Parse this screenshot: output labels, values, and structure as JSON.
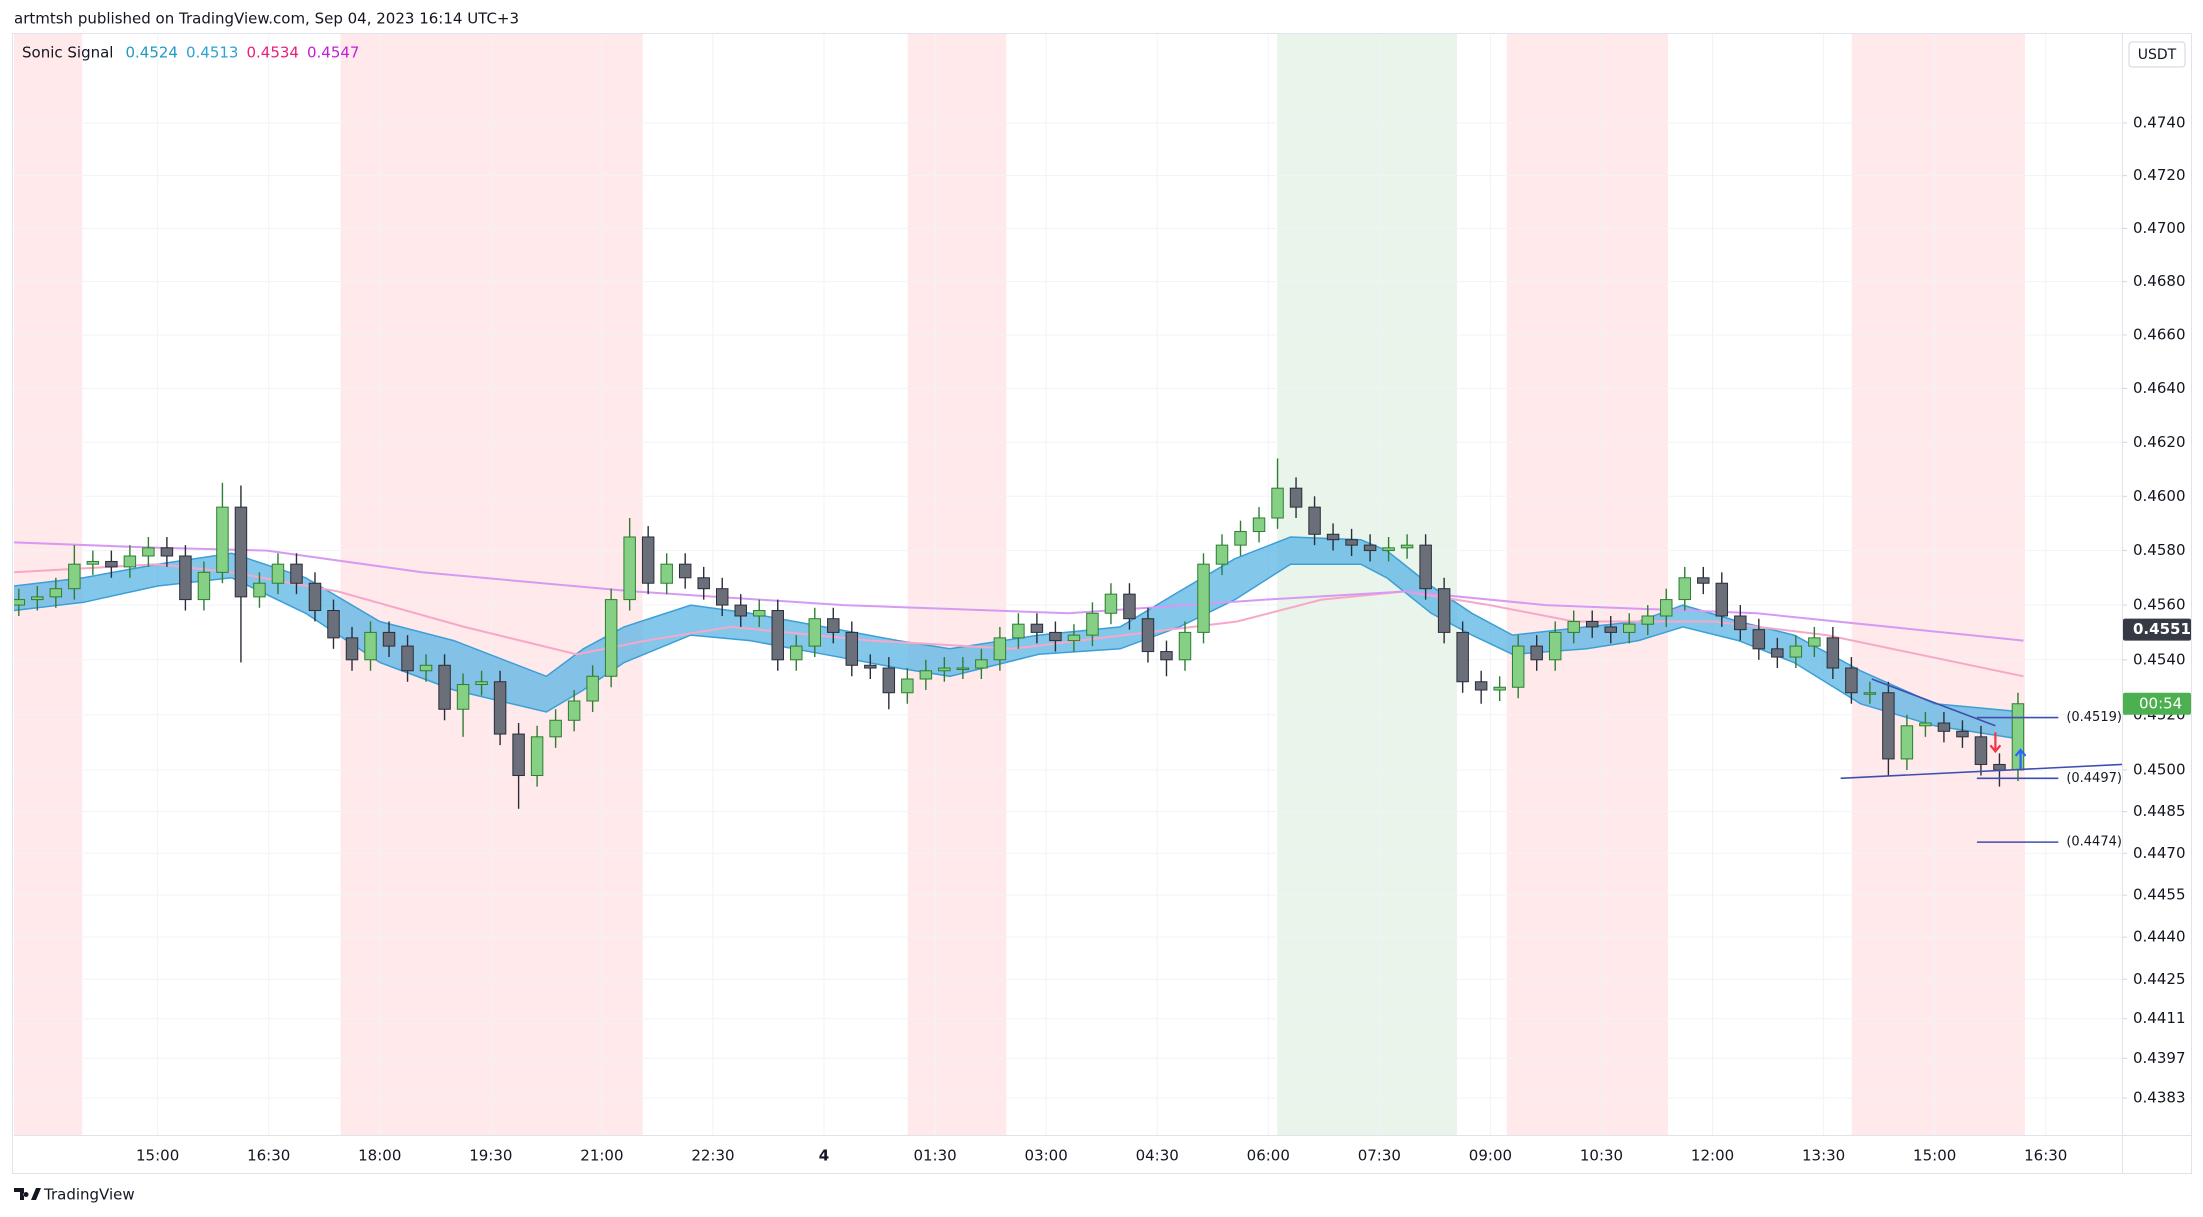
{
  "header": {
    "text": "artmtsh published on TradingView.com, Sep 04, 2023 16:14 UTC+3"
  },
  "footer": {
    "brand": "TradingView"
  },
  "chart_data": {
    "type": "candlestick",
    "currency": "USDT",
    "log": true,
    "grid": true,
    "xlim": [
      13.06,
      41.53
    ],
    "ylim": [
      0.437,
      0.4774
    ],
    "xticks": [
      {
        "value": 15,
        "label": "15:00"
      },
      {
        "value": 16.5,
        "label": "16:30"
      },
      {
        "value": 18,
        "label": "18:00"
      },
      {
        "value": 19.5,
        "label": "19:30"
      },
      {
        "value": 21,
        "label": "21:00"
      },
      {
        "value": 22.5,
        "label": "22:30"
      },
      {
        "value": 24,
        "label": "4"
      },
      {
        "value": 25.5,
        "label": "01:30"
      },
      {
        "value": 27,
        "label": "03:00"
      },
      {
        "value": 28.5,
        "label": "04:30"
      },
      {
        "value": 30,
        "label": "06:00"
      },
      {
        "value": 31.5,
        "label": "07:30"
      },
      {
        "value": 33,
        "label": "09:00"
      },
      {
        "value": 34.5,
        "label": "10:30"
      },
      {
        "value": 36,
        "label": "12:00"
      },
      {
        "value": 37.5,
        "label": "13:30"
      },
      {
        "value": 39,
        "label": "15:00"
      },
      {
        "value": 40.5,
        "label": "16:30"
      }
    ],
    "yticks": [
      {
        "value": 0.474,
        "label": "0.4740"
      },
      {
        "value": 0.472,
        "label": "0.4720"
      },
      {
        "value": 0.47,
        "label": "0.4700"
      },
      {
        "value": 0.468,
        "label": "0.4680"
      },
      {
        "value": 0.466,
        "label": "0.4660"
      },
      {
        "value": 0.464,
        "label": "0.4640"
      },
      {
        "value": 0.462,
        "label": "0.4620"
      },
      {
        "value": 0.46,
        "label": "0.4600"
      },
      {
        "value": 0.458,
        "label": "0.4580"
      },
      {
        "value": 0.456,
        "label": "0.4560"
      },
      {
        "value": 0.454,
        "label": "0.4540"
      },
      {
        "value": 0.452,
        "label": "0.4520"
      },
      {
        "value": 0.45,
        "label": "0.4500"
      },
      0.4485,
      {
        "value": 0.447,
        "label": "0.4470"
      },
      0.4455,
      {
        "value": 0.444,
        "label": "0.4440"
      },
      0.4425,
      0.4411,
      0.4397,
      0.4383
    ],
    "zones": [
      {
        "start": 13.06,
        "end": 13.98,
        "color": "#ffe9ea"
      },
      {
        "start": 17.47,
        "end": 21.55,
        "color": "#ffe9ea"
      },
      {
        "start": 25.13,
        "end": 26.46,
        "color": "#ffe9ea"
      },
      {
        "start": 30.12,
        "end": 32.55,
        "color": "#e9f4ea"
      },
      {
        "start": 33.22,
        "end": 35.4,
        "color": "#ffe9ea"
      },
      {
        "start": 37.88,
        "end": 40.22,
        "color": "#ffe9ea"
      }
    ],
    "legend": {
      "title": "Sonic Signal"
    },
    "up_color": "#86d086",
    "up_border": "#2e7d32",
    "down_color": "#6b6f7a",
    "down_border": "#2a2e39",
    "x": [
      13.125,
      13.375,
      13.625,
      13.875,
      14.125,
      14.375,
      14.625,
      14.875,
      15.125,
      15.375,
      15.625,
      15.875,
      16.125,
      16.375,
      16.625,
      16.875,
      17.125,
      17.375,
      17.625,
      17.875,
      18.125,
      18.375,
      18.625,
      18.875,
      19.125,
      19.375,
      19.625,
      19.875,
      20.125,
      20.375,
      20.625,
      20.875,
      21.125,
      21.375,
      21.625,
      21.875,
      22.125,
      22.375,
      22.625,
      22.875,
      23.125,
      23.375,
      23.625,
      23.875,
      24.125,
      24.375,
      24.625,
      24.875,
      25.125,
      25.375,
      25.625,
      25.875,
      26.125,
      26.375,
      26.625,
      26.875,
      27.125,
      27.375,
      27.625,
      27.875,
      28.125,
      28.375,
      28.625,
      28.875,
      29.125,
      29.375,
      29.625,
      29.875,
      30.125,
      30.375,
      30.625,
      30.875,
      31.125,
      31.375,
      31.625,
      31.875,
      32.125,
      32.375,
      32.625,
      32.875,
      33.125,
      33.375,
      33.625,
      33.875,
      34.125,
      34.375,
      34.625,
      34.875,
      35.125,
      35.375,
      35.625,
      35.875,
      36.125,
      36.375,
      36.625,
      36.875,
      37.125,
      37.375,
      37.625,
      37.875,
      38.125,
      38.375,
      38.625,
      38.875,
      39.125,
      39.375,
      39.625,
      39.875,
      40.125
    ],
    "open": [
      0.456,
      0.4562,
      0.4563,
      0.4566,
      0.4575,
      0.4576,
      0.4574,
      0.4578,
      0.4581,
      0.4578,
      0.4562,
      0.4572,
      0.4596,
      0.4563,
      0.4568,
      0.4575,
      0.4568,
      0.4558,
      0.4548,
      0.454,
      0.455,
      0.4545,
      0.4536,
      0.4538,
      0.4522,
      0.4531,
      0.4532,
      0.4513,
      0.4498,
      0.4512,
      0.4518,
      0.4525,
      0.4534,
      0.4562,
      0.4585,
      0.4568,
      0.4575,
      0.457,
      0.4566,
      0.456,
      0.4556,
      0.4558,
      0.454,
      0.4545,
      0.4555,
      0.455,
      0.4538,
      0.4537,
      0.4528,
      0.4533,
      0.4536,
      0.4537,
      0.4537,
      0.454,
      0.4548,
      0.4553,
      0.455,
      0.4547,
      0.4549,
      0.4557,
      0.4564,
      0.4555,
      0.4543,
      0.454,
      0.455,
      0.4575,
      0.4582,
      0.4587,
      0.4592,
      0.4603,
      0.4596,
      0.4586,
      0.4584,
      0.4582,
      0.458,
      0.4581,
      0.4582,
      0.4566,
      0.455,
      0.4532,
      0.4529,
      0.453,
      0.4545,
      0.454,
      0.455,
      0.4554,
      0.4552,
      0.455,
      0.4553,
      0.4556,
      0.4562,
      0.457,
      0.4568,
      0.4556,
      0.4551,
      0.4544,
      0.4541,
      0.4545,
      0.4548,
      0.4537,
      0.4528,
      0.4528,
      0.4504,
      0.4516,
      0.4517,
      0.4514,
      0.4512,
      0.4502,
      0.45
    ],
    "high": [
      0.4566,
      0.4567,
      0.457,
      0.4582,
      0.458,
      0.458,
      0.4582,
      0.4585,
      0.4585,
      0.4582,
      0.4576,
      0.4605,
      0.4604,
      0.4572,
      0.4579,
      0.4579,
      0.4572,
      0.4562,
      0.4552,
      0.4554,
      0.4554,
      0.4549,
      0.4542,
      0.4542,
      0.4535,
      0.4536,
      0.4536,
      0.4517,
      0.4516,
      0.4522,
      0.4529,
      0.4538,
      0.4566,
      0.4592,
      0.4589,
      0.4579,
      0.4579,
      0.4574,
      0.457,
      0.4564,
      0.4562,
      0.4562,
      0.4549,
      0.4559,
      0.4559,
      0.4554,
      0.4542,
      0.4541,
      0.4537,
      0.454,
      0.4541,
      0.4541,
      0.4544,
      0.4552,
      0.4557,
      0.4557,
      0.4554,
      0.4553,
      0.4561,
      0.4568,
      0.4568,
      0.4559,
      0.4547,
      0.4554,
      0.4579,
      0.4586,
      0.4591,
      0.4596,
      0.4614,
      0.4607,
      0.46,
      0.459,
      0.4588,
      0.4586,
      0.4585,
      0.4586,
      0.4586,
      0.457,
      0.4554,
      0.4536,
      0.4534,
      0.4549,
      0.4549,
      0.4554,
      0.4558,
      0.4558,
      0.4556,
      0.4557,
      0.456,
      0.4566,
      0.4574,
      0.4574,
      0.4572,
      0.456,
      0.4555,
      0.4548,
      0.4549,
      0.4552,
      0.4552,
      0.4541,
      0.4532,
      0.4532,
      0.452,
      0.4521,
      0.4521,
      0.4518,
      0.4516,
      0.4506,
      0.4528
    ],
    "low": [
      0.4556,
      0.4558,
      0.4559,
      0.4562,
      0.4571,
      0.457,
      0.457,
      0.4574,
      0.4574,
      0.4558,
      0.4558,
      0.4568,
      0.4539,
      0.4559,
      0.4564,
      0.4564,
      0.4554,
      0.4544,
      0.4536,
      0.4536,
      0.4541,
      0.4532,
      0.4532,
      0.4518,
      0.4512,
      0.4527,
      0.4509,
      0.4486,
      0.4494,
      0.4508,
      0.4514,
      0.4521,
      0.453,
      0.4558,
      0.4564,
      0.4564,
      0.4566,
      0.4562,
      0.4556,
      0.4552,
      0.4552,
      0.4536,
      0.4536,
      0.4541,
      0.4546,
      0.4534,
      0.4533,
      0.4522,
      0.4524,
      0.4529,
      0.4532,
      0.4533,
      0.4533,
      0.4536,
      0.4544,
      0.4546,
      0.4543,
      0.4543,
      0.4545,
      0.4553,
      0.4551,
      0.4539,
      0.4534,
      0.4536,
      0.4546,
      0.4571,
      0.4578,
      0.4583,
      0.4588,
      0.4592,
      0.4582,
      0.458,
      0.4578,
      0.4576,
      0.4576,
      0.4577,
      0.4562,
      0.4546,
      0.4528,
      0.4524,
      0.4525,
      0.4526,
      0.4536,
      0.4536,
      0.4546,
      0.4548,
      0.4546,
      0.4546,
      0.4549,
      0.4552,
      0.4558,
      0.4564,
      0.4552,
      0.4547,
      0.454,
      0.4537,
      0.4537,
      0.4541,
      0.4533,
      0.4524,
      0.4524,
      0.4498,
      0.45,
      0.4512,
      0.451,
      0.4508,
      0.4498,
      0.4494,
      0.4496
    ],
    "close": [
      0.4562,
      0.4563,
      0.4566,
      0.4575,
      0.4576,
      0.4574,
      0.4578,
      0.4581,
      0.4578,
      0.4562,
      0.4572,
      0.4596,
      0.4563,
      0.4568,
      0.4575,
      0.4568,
      0.4558,
      0.4548,
      0.454,
      0.455,
      0.4545,
      0.4536,
      0.4538,
      0.4522,
      0.4531,
      0.4532,
      0.4513,
      0.4498,
      0.4512,
      0.4518,
      0.4525,
      0.4534,
      0.4562,
      0.4585,
      0.4568,
      0.4575,
      0.457,
      0.4566,
      0.456,
      0.4556,
      0.4558,
      0.454,
      0.4545,
      0.4555,
      0.455,
      0.4538,
      0.4537,
      0.4528,
      0.4533,
      0.4536,
      0.4537,
      0.4537,
      0.454,
      0.4548,
      0.4553,
      0.455,
      0.4547,
      0.4549,
      0.4557,
      0.4564,
      0.4555,
      0.4543,
      0.454,
      0.455,
      0.4575,
      0.4582,
      0.4587,
      0.4592,
      0.4603,
      0.4596,
      0.4586,
      0.4584,
      0.4582,
      0.458,
      0.4581,
      0.4582,
      0.4566,
      0.455,
      0.4532,
      0.4529,
      0.453,
      0.4545,
      0.454,
      0.455,
      0.4554,
      0.4552,
      0.455,
      0.4553,
      0.4556,
      0.4562,
      0.457,
      0.4568,
      0.4556,
      0.4551,
      0.4544,
      0.4541,
      0.4545,
      0.4548,
      0.4537,
      0.4528,
      0.4528,
      0.4504,
      0.4516,
      0.4517,
      0.4514,
      0.4512,
      0.4502,
      0.45,
      0.4524
    ],
    "ribbon": {
      "fill": "#5ab4e4",
      "stroke": "#3c9fd6",
      "upper": {
        "legend_value": 0.4524,
        "legend_color": "#1f9bc4",
        "x": [
          13.06,
          14,
          15,
          16,
          17,
          18,
          19,
          20.25,
          20.75,
          21.3,
          22.2,
          23,
          24,
          25,
          25.7,
          26.9,
          28,
          28.8,
          29.55,
          30.3,
          31.25,
          31.6,
          32.2,
          32.75,
          33.3,
          34.3,
          35,
          35.6,
          36.35,
          37.1,
          38,
          39,
          40.2
        ],
        "values": [
          0.4567,
          0.457,
          0.4575,
          0.4579,
          0.457,
          0.4554,
          0.4547,
          0.4534,
          0.4544,
          0.4552,
          0.456,
          0.4557,
          0.4552,
          0.4547,
          0.4544,
          0.4549,
          0.4552,
          0.4565,
          0.4577,
          0.4585,
          0.4584,
          0.458,
          0.4567,
          0.4557,
          0.4549,
          0.4552,
          0.4554,
          0.456,
          0.4554,
          0.4549,
          0.4536,
          0.4524,
          0.4521
        ]
      },
      "lower": {
        "legend_value": 0.4513,
        "legend_color": "#2aa3d3",
        "x": [
          13.06,
          14,
          15,
          16,
          17,
          18,
          19,
          20.25,
          20.75,
          21.3,
          22.2,
          23,
          24,
          25,
          25.7,
          26.9,
          28,
          28.8,
          29.55,
          30.3,
          31.25,
          31.6,
          32.2,
          32.75,
          33.3,
          34.3,
          35,
          35.6,
          36.35,
          37.1,
          38,
          39,
          40.2
        ],
        "values": [
          0.4558,
          0.4561,
          0.4567,
          0.457,
          0.4557,
          0.4539,
          0.4529,
          0.4521,
          0.4529,
          0.4539,
          0.4549,
          0.4547,
          0.4542,
          0.4537,
          0.4534,
          0.4542,
          0.4544,
          0.4552,
          0.4562,
          0.4575,
          0.4575,
          0.457,
          0.4557,
          0.4549,
          0.4542,
          0.4544,
          0.4547,
          0.4552,
          0.4547,
          0.4539,
          0.4524,
          0.4516,
          0.4511
        ]
      }
    },
    "lines": [
      {
        "color": "#f7a8c8",
        "legend_value": 0.4534,
        "legend_color": "#e91e7a",
        "x": [
          13.06,
          15,
          16,
          17.43,
          19.14,
          20.66,
          21.6,
          22.74,
          24.64,
          26.54,
          28.06,
          29.58,
          30.72,
          31.85,
          32.99,
          34.13,
          36.02,
          37.54,
          40.2
        ],
        "values": [
          0.4572,
          0.4575,
          0.4572,
          0.4565,
          0.4552,
          0.4542,
          0.4547,
          0.4552,
          0.4547,
          0.4544,
          0.4549,
          0.4554,
          0.4562,
          0.4565,
          0.456,
          0.4554,
          0.4554,
          0.4549,
          0.4534
        ]
      },
      {
        "color": "#d79af2",
        "legend_value": 0.4547,
        "legend_color": "#c21fd6",
        "x": [
          13.06,
          15,
          16.48,
          18.57,
          21.42,
          24.26,
          27.3,
          29.96,
          31.85,
          33.75,
          36.6,
          40.2
        ],
        "values": [
          0.4583,
          0.4581,
          0.458,
          0.4572,
          0.4565,
          0.456,
          0.4557,
          0.4562,
          0.4565,
          0.456,
          0.4557,
          0.4547
        ]
      }
    ],
    "trendlines": [
      {
        "color": "#3f4fb0",
        "x": [
          38.15,
          39.82
        ],
        "y": [
          0.4533,
          0.4516
        ]
      },
      {
        "color": "#3f4fb0",
        "x": [
          37.73,
          41.53
        ],
        "y": [
          0.4497,
          0.4502
        ]
      }
    ],
    "levels": [
      {
        "value": 0.4519,
        "label": "(0.4519)",
        "x": [
          39.57,
          40.67
        ],
        "color": "#3f4fb0"
      },
      {
        "value": 0.4497,
        "label": "(0.4497)",
        "x": [
          39.57,
          40.67
        ],
        "color": "#3f4fb0"
      },
      {
        "value": 0.4474,
        "label": "(0.4474)",
        "x": [
          39.57,
          40.67
        ],
        "color": "#3f4fb0"
      }
    ],
    "signals": [
      {
        "x": 39.82,
        "y": 0.451,
        "direction": "down",
        "color": "#f23645"
      },
      {
        "x": 40.16,
        "y": 0.4504,
        "direction": "up",
        "color": "#2962ff"
      }
    ],
    "price_marks": [
      {
        "value": 0.4551,
        "color": "#363a45"
      }
    ],
    "countdown": {
      "label": "00:54",
      "color": "#4caf50"
    }
  }
}
